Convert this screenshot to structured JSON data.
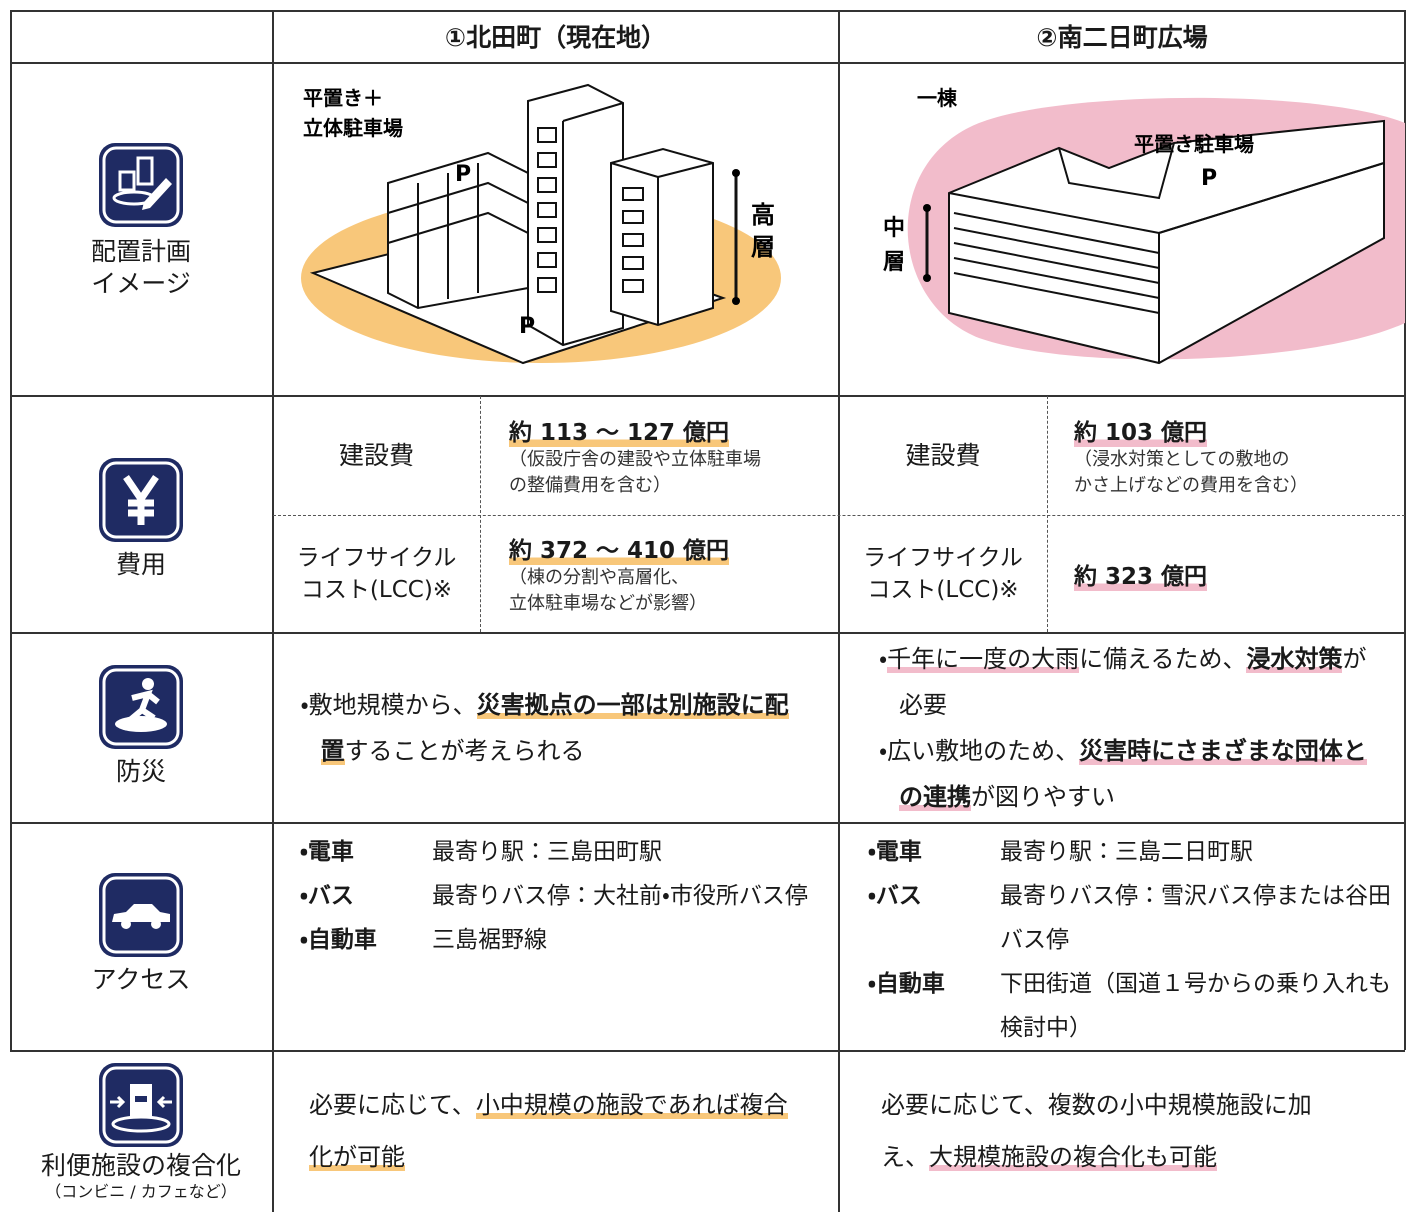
{
  "header": {
    "columns": [
      "①北田町（現在地）",
      "②南二日町広場"
    ]
  },
  "layout": {
    "label": [
      "配置計画",
      "イメージ"
    ],
    "left": {
      "parking": [
        "平置き＋",
        "立体駐車場"
      ],
      "p_upper": "P",
      "p_lower": "P",
      "height": [
        "高",
        "層"
      ]
    },
    "right": {
      "building": "一棟",
      "parking": "平置き駐車場",
      "p": "P",
      "height": [
        "中",
        "層"
      ]
    }
  },
  "cost": {
    "label": "費用",
    "left": {
      "construction": {
        "label": "建設費",
        "value": "約 113 〜 127 億円",
        "note": [
          "（仮設庁舎の建設や立体駐車場",
          "の整備費用を含む）"
        ]
      },
      "lcc": {
        "label": [
          "ライフサイクル",
          "コスト(LCC)※"
        ],
        "value": "約 372 〜 410 億円",
        "note": [
          "（棟の分割や高層化、",
          "立体駐車場などが影響）"
        ]
      }
    },
    "right": {
      "construction": {
        "label": "建設費",
        "value": "約 103 億円",
        "note": [
          "（浸水対策としての敷地の",
          "かさ上げなどの費用を含む）"
        ]
      },
      "lcc": {
        "label": [
          "ライフサイクル",
          "コスト(LCC)※"
        ],
        "value": "約 323 億円"
      }
    }
  },
  "disaster": {
    "label": "防災",
    "left": [
      "・敷地規模から、",
      "災害拠点の一部は別施設に配置",
      "することが考えられる"
    ],
    "right": [
      [
        "・",
        "千年に一度の大雨",
        "に備えるため、",
        "浸水対策",
        "が必要"
      ],
      [
        "・広い敷地のため、",
        "災害時にさまざまな団体との連携",
        "が図りやすい"
      ]
    ]
  },
  "access": {
    "label": "アクセス",
    "left": [
      {
        "mode": "・電車",
        "detail": "最寄り駅：三島田町駅"
      },
      {
        "mode": "・バス",
        "detail": "最寄りバス停：大社前・市役所バス停"
      },
      {
        "mode": "・自動車",
        "detail": "三島裾野線"
      }
    ],
    "right": [
      {
        "mode": "・電車",
        "detail": "最寄り駅：三島二日町駅"
      },
      {
        "mode": "・バス",
        "detail": "最寄りバス停：雪沢バス停または谷田バス停"
      },
      {
        "mode": "・自動車",
        "detail": "下田街道（国道１号からの乗り入れも検討中）"
      }
    ]
  },
  "facilities": {
    "label": "利便施設の複合化",
    "sublabel": "（コンビニ / カフェなど）",
    "left": [
      "必要に応じて、",
      "小中規模の施設であれば複合化が可能"
    ],
    "right": [
      "必要に応じて、複数の小中規模施設に加え、",
      "大規模施設の複合化も可能"
    ]
  }
}
